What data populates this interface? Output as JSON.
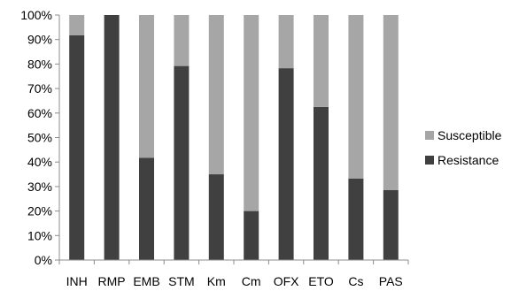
{
  "chart_data": {
    "type": "bar",
    "stacked": true,
    "percent_stacked": true,
    "categories": [
      "INH",
      "RMP",
      "EMB",
      "STM",
      "Km",
      "Cm",
      "OFX",
      "ETO",
      "Cs",
      "PAS"
    ],
    "series": [
      {
        "name": "Resistance",
        "color": "#404040",
        "values": [
          91.7,
          100,
          41.7,
          79.2,
          35.0,
          20.0,
          78.3,
          62.5,
          33.3,
          28.6
        ]
      },
      {
        "name": "Susceptible",
        "color": "#a6a6a6",
        "values": [
          8.3,
          0,
          58.3,
          20.8,
          65.0,
          80.0,
          21.7,
          37.5,
          66.7,
          71.4
        ]
      }
    ],
    "ylim": [
      0,
      100
    ],
    "yticks": [
      "0%",
      "10%",
      "20%",
      "30%",
      "40%",
      "50%",
      "60%",
      "70%",
      "80%",
      "90%",
      "100%"
    ],
    "grid": false,
    "legend": {
      "position": "right",
      "entries": [
        "Susceptible",
        "Resistance"
      ]
    }
  }
}
